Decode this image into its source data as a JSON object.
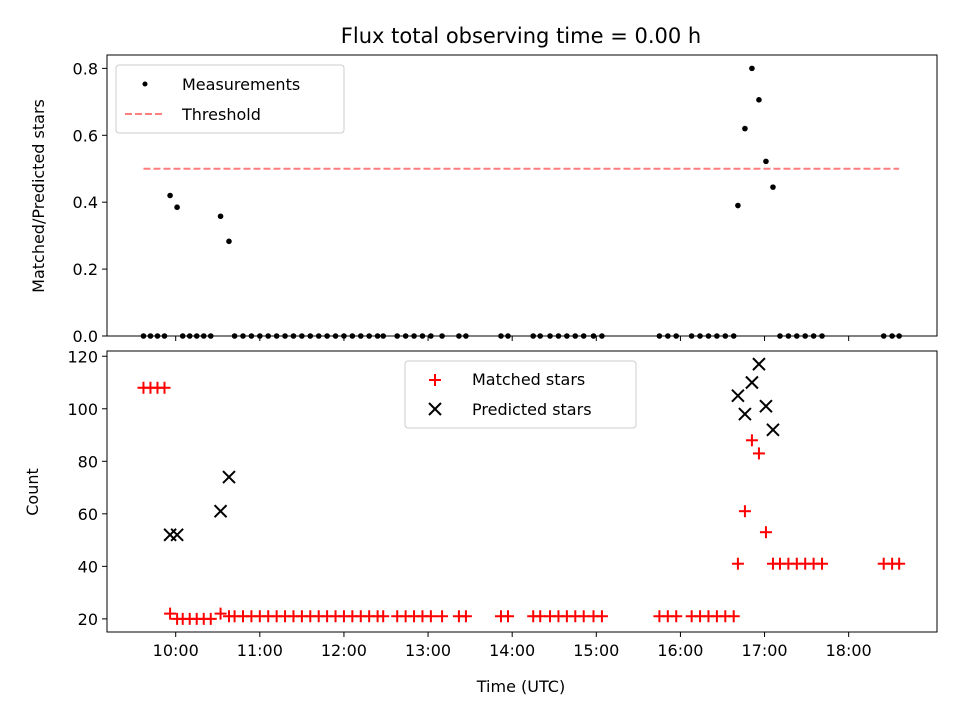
{
  "chart_data": [
    {
      "type": "scatter",
      "title": "Flux total observing time = 0.00 h",
      "xlabel": "",
      "ylabel": "Matched/Predicted stars",
      "xlim": [
        "09:11",
        "19:03"
      ],
      "ylim": [
        0,
        0.84
      ],
      "yticks": [
        "0.0",
        "0.2",
        "0.4",
        "0.6",
        "0.8"
      ],
      "legend_position": "top-left",
      "grid": false,
      "series": [
        {
          "name": "Measurements",
          "marker": "dot",
          "color": "#000000",
          "points": [
            [
              "09:37",
              0
            ],
            [
              "09:42",
              0
            ],
            [
              "09:47",
              0
            ],
            [
              "09:52",
              0
            ],
            [
              "09:56",
              0.42
            ],
            [
              "10:01",
              0.385
            ],
            [
              "10:05",
              0
            ],
            [
              "10:10",
              0
            ],
            [
              "10:15",
              0
            ],
            [
              "10:20",
              0
            ],
            [
              "10:25",
              0
            ],
            [
              "10:32",
              0.358
            ],
            [
              "10:38",
              0.283
            ],
            [
              "10:42",
              0
            ],
            [
              "10:48",
              0
            ],
            [
              "10:54",
              0
            ],
            [
              "11:00",
              0
            ],
            [
              "11:06",
              0
            ],
            [
              "11:12",
              0
            ],
            [
              "11:18",
              0
            ],
            [
              "11:24",
              0
            ],
            [
              "11:30",
              0
            ],
            [
              "11:36",
              0
            ],
            [
              "11:42",
              0
            ],
            [
              "11:48",
              0
            ],
            [
              "11:54",
              0
            ],
            [
              "12:00",
              0
            ],
            [
              "12:06",
              0
            ],
            [
              "12:12",
              0
            ],
            [
              "12:18",
              0
            ],
            [
              "12:24",
              0
            ],
            [
              "12:28",
              0
            ],
            [
              "12:38",
              0
            ],
            [
              "12:44",
              0
            ],
            [
              "12:50",
              0
            ],
            [
              "12:56",
              0
            ],
            [
              "13:02",
              0
            ],
            [
              "13:10",
              0
            ],
            [
              "13:22",
              0
            ],
            [
              "13:27",
              0
            ],
            [
              "13:52",
              0
            ],
            [
              "13:57",
              0
            ],
            [
              "14:15",
              0
            ],
            [
              "14:20",
              0
            ],
            [
              "14:27",
              0
            ],
            [
              "14:33",
              0
            ],
            [
              "14:39",
              0
            ],
            [
              "14:45",
              0
            ],
            [
              "14:51",
              0
            ],
            [
              "14:58",
              0
            ],
            [
              "15:04",
              0
            ],
            [
              "15:45",
              0
            ],
            [
              "15:51",
              0
            ],
            [
              "15:57",
              0
            ],
            [
              "16:08",
              0
            ],
            [
              "16:14",
              0
            ],
            [
              "16:20",
              0
            ],
            [
              "16:26",
              0
            ],
            [
              "16:32",
              0
            ],
            [
              "16:38",
              0
            ],
            [
              "16:41",
              0.39
            ],
            [
              "16:46",
              0.62
            ],
            [
              "16:51",
              0.8
            ],
            [
              "16:56",
              0.706
            ],
            [
              "17:01",
              0.522
            ],
            [
              "17:06",
              0.445
            ],
            [
              "17:11",
              0
            ],
            [
              "17:17",
              0
            ],
            [
              "17:23",
              0
            ],
            [
              "17:29",
              0
            ],
            [
              "17:35",
              0
            ],
            [
              "17:41",
              0
            ],
            [
              "18:25",
              0
            ],
            [
              "18:31",
              0
            ],
            [
              "18:36",
              0
            ]
          ]
        },
        {
          "name": "Threshold",
          "style": "dashed",
          "color": "#ff7f7f",
          "points": [
            [
              "09:37",
              0.5
            ],
            [
              "18:36",
              0.5
            ]
          ]
        }
      ]
    },
    {
      "type": "scatter",
      "title": "",
      "xlabel": "Time (UTC)",
      "ylabel": "Count",
      "xlim": [
        "09:11",
        "19:03"
      ],
      "ylim": [
        15,
        122
      ],
      "xticks": [
        "10:00",
        "11:00",
        "12:00",
        "13:00",
        "14:00",
        "15:00",
        "16:00",
        "17:00",
        "18:00"
      ],
      "yticks": [
        "20",
        "40",
        "60",
        "80",
        "100",
        "120"
      ],
      "legend_position": "top-center",
      "grid": false,
      "series": [
        {
          "name": "Matched stars",
          "marker": "plus",
          "color": "#ff0000",
          "points": [
            [
              "09:37",
              108
            ],
            [
              "09:42",
              108
            ],
            [
              "09:47",
              108
            ],
            [
              "09:52",
              108
            ],
            [
              "09:56",
              22
            ],
            [
              "10:01",
              20
            ],
            [
              "10:05",
              20
            ],
            [
              "10:10",
              20
            ],
            [
              "10:15",
              20
            ],
            [
              "10:20",
              20
            ],
            [
              "10:25",
              20
            ],
            [
              "10:32",
              22
            ],
            [
              "10:38",
              21
            ],
            [
              "10:42",
              21
            ],
            [
              "10:48",
              21
            ],
            [
              "10:54",
              21
            ],
            [
              "11:00",
              21
            ],
            [
              "11:06",
              21
            ],
            [
              "11:12",
              21
            ],
            [
              "11:18",
              21
            ],
            [
              "11:24",
              21
            ],
            [
              "11:30",
              21
            ],
            [
              "11:36",
              21
            ],
            [
              "11:42",
              21
            ],
            [
              "11:48",
              21
            ],
            [
              "11:54",
              21
            ],
            [
              "12:00",
              21
            ],
            [
              "12:06",
              21
            ],
            [
              "12:12",
              21
            ],
            [
              "12:18",
              21
            ],
            [
              "12:24",
              21
            ],
            [
              "12:28",
              21
            ],
            [
              "12:38",
              21
            ],
            [
              "12:44",
              21
            ],
            [
              "12:50",
              21
            ],
            [
              "12:56",
              21
            ],
            [
              "13:02",
              21
            ],
            [
              "13:10",
              21
            ],
            [
              "13:22",
              21
            ],
            [
              "13:27",
              21
            ],
            [
              "13:52",
              21
            ],
            [
              "13:57",
              21
            ],
            [
              "14:15",
              21
            ],
            [
              "14:20",
              21
            ],
            [
              "14:27",
              21
            ],
            [
              "14:33",
              21
            ],
            [
              "14:39",
              21
            ],
            [
              "14:45",
              21
            ],
            [
              "14:51",
              21
            ],
            [
              "14:58",
              21
            ],
            [
              "15:04",
              21
            ],
            [
              "15:45",
              21
            ],
            [
              "15:51",
              21
            ],
            [
              "15:57",
              21
            ],
            [
              "16:08",
              21
            ],
            [
              "16:14",
              21
            ],
            [
              "16:20",
              21
            ],
            [
              "16:26",
              21
            ],
            [
              "16:32",
              21
            ],
            [
              "16:38",
              21
            ],
            [
              "16:41",
              41
            ],
            [
              "16:46",
              61
            ],
            [
              "16:51",
              88
            ],
            [
              "16:56",
              83
            ],
            [
              "17:01",
              53
            ],
            [
              "17:06",
              41
            ],
            [
              "17:11",
              41
            ],
            [
              "17:17",
              41
            ],
            [
              "17:23",
              41
            ],
            [
              "17:29",
              41
            ],
            [
              "17:35",
              41
            ],
            [
              "17:41",
              41
            ],
            [
              "18:25",
              41
            ],
            [
              "18:31",
              41
            ],
            [
              "18:36",
              41
            ]
          ]
        },
        {
          "name": "Predicted stars",
          "marker": "x",
          "color": "#000000",
          "points": [
            [
              "09:56",
              52
            ],
            [
              "10:01",
              52
            ],
            [
              "10:32",
              61
            ],
            [
              "10:38",
              74
            ],
            [
              "16:41",
              105
            ],
            [
              "16:46",
              98
            ],
            [
              "16:51",
              110
            ],
            [
              "16:56",
              117
            ],
            [
              "17:01",
              101
            ],
            [
              "17:06",
              92
            ]
          ]
        }
      ]
    }
  ]
}
